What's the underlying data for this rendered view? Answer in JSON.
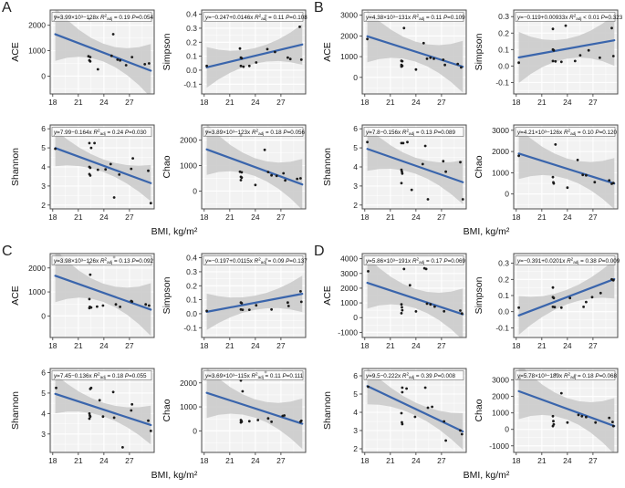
{
  "figure": {
    "xlabel": "BMI, kg/m²",
    "x_ticks": [
      18,
      21,
      24,
      27
    ],
    "x_range": [
      17.7,
      29.9
    ],
    "data_x_range": [
      18.3,
      29.5
    ],
    "r2": {
      "sym": "R",
      "sup": "2",
      "sub": "adj"
    },
    "colors": {
      "line": "#3a65ac",
      "band": "#cbcbcb",
      "panel_bg": "#f2f2f2",
      "grid": "#ffffff",
      "point": "#1a1a1a",
      "border": "#4d4d4d"
    }
  },
  "chart_data": [
    {
      "type": "scatter",
      "panel": "A",
      "ylabel": "ACE",
      "eq": "y=3.99×10³−128x",
      "r2": "= 0.19",
      "p": "P=0.054",
      "intercept": 3990,
      "slope": -128,
      "y_ticks": [
        0,
        1000,
        2000
      ],
      "y_fmt": 0,
      "y_range": [
        -700,
        2600
      ],
      "band_mid": 350,
      "band_end": 1050,
      "points": [
        [
          18.3,
          2350
        ],
        [
          22.3,
          2250
        ],
        [
          25.1,
          1650
        ],
        [
          22.2,
          780
        ],
        [
          22.4,
          750
        ],
        [
          22.3,
          620
        ],
        [
          22.4,
          580
        ],
        [
          23.3,
          270
        ],
        [
          24.9,
          800
        ],
        [
          25.6,
          650
        ],
        [
          25.9,
          620
        ],
        [
          26.6,
          430
        ],
        [
          27.3,
          750
        ],
        [
          28.8,
          470
        ],
        [
          29.3,
          500
        ]
      ]
    },
    {
      "type": "scatter",
      "panel": "A",
      "ylabel": "Simpson",
      "eq": "y=−0.247+0.0146x",
      "r2": "= 0.11",
      "p": "P=0.108",
      "intercept": -0.247,
      "slope": 0.0146,
      "y_ticks": [
        -0.1,
        0,
        0.1,
        0.2,
        0.3,
        0.4
      ],
      "y_fmt": 1,
      "y_range": [
        -0.17,
        0.43
      ],
      "band_mid": 0.055,
      "band_end": 0.145,
      "points": [
        [
          18.3,
          0.03
        ],
        [
          22.2,
          0.155
        ],
        [
          22.3,
          0.09
        ],
        [
          22.4,
          0.085
        ],
        [
          22.3,
          0.03
        ],
        [
          22.6,
          0.025
        ],
        [
          23.3,
          0.03
        ],
        [
          24.1,
          0.055
        ],
        [
          25.2,
          0.39
        ],
        [
          25.4,
          0.15
        ],
        [
          26.3,
          0.13
        ],
        [
          27.8,
          0.09
        ],
        [
          28.1,
          0.08
        ],
        [
          29.2,
          0.31
        ],
        [
          29.4,
          0.075
        ]
      ]
    },
    {
      "type": "scatter",
      "panel": "A",
      "ylabel": "Shannon",
      "eq": "y=7.99−0.164x",
      "r2": "= 0.24",
      "p": "P=0.030",
      "intercept": 7.99,
      "slope": -0.164,
      "y_ticks": [
        2,
        3,
        4,
        5,
        6
      ],
      "y_fmt": 0,
      "y_range": [
        1.8,
        6.2
      ],
      "band_mid": 0.33,
      "band_end": 0.95,
      "points": [
        [
          18.3,
          4.95
        ],
        [
          22.3,
          5.25
        ],
        [
          22.5,
          5.0
        ],
        [
          22.9,
          5.25
        ],
        [
          22.3,
          4.0
        ],
        [
          22.4,
          3.95
        ],
        [
          22.3,
          3.62
        ],
        [
          22.4,
          3.55
        ],
        [
          23.3,
          3.85
        ],
        [
          24.2,
          3.87
        ],
        [
          24.8,
          4.15
        ],
        [
          25.2,
          2.4
        ],
        [
          25.8,
          3.6
        ],
        [
          27.2,
          3.9
        ],
        [
          27.4,
          4.45
        ],
        [
          29.2,
          3.8
        ],
        [
          29.5,
          2.1
        ]
      ]
    },
    {
      "type": "scatter",
      "panel": "A",
      "ylabel": "Chao",
      "eq": "y=3.89×10³−123x",
      "r2": "= 0.18",
      "p": "P=0.056",
      "intercept": 3890,
      "slope": -123,
      "y_ticks": [
        0,
        1000,
        2000
      ],
      "y_fmt": 0,
      "y_range": [
        -700,
        2600
      ],
      "band_mid": 350,
      "band_end": 1000,
      "points": [
        [
          18.3,
          2350
        ],
        [
          22.3,
          2200
        ],
        [
          25.1,
          1620
        ],
        [
          22.2,
          760
        ],
        [
          22.4,
          740
        ],
        [
          22.3,
          560
        ],
        [
          22.4,
          530
        ],
        [
          22.3,
          430
        ],
        [
          24.0,
          240
        ],
        [
          25.5,
          750
        ],
        [
          25.9,
          620
        ],
        [
          26.5,
          600
        ],
        [
          27.3,
          700
        ],
        [
          27.5,
          420
        ],
        [
          28.9,
          480
        ],
        [
          29.3,
          500
        ]
      ]
    },
    {
      "type": "scatter",
      "panel": "B",
      "ylabel": "ACE",
      "eq": "y=4.38×10³−131x",
      "r2": "= 0.11",
      "p": "P=0.109",
      "intercept": 4380,
      "slope": -131,
      "y_ticks": [
        0,
        1000,
        2000,
        3000
      ],
      "y_fmt": 0,
      "y_range": [
        -800,
        3250
      ],
      "band_mid": 480,
      "band_end": 1250,
      "points": [
        [
          18.3,
          1850
        ],
        [
          22.6,
          2380
        ],
        [
          24.9,
          1650
        ],
        [
          22.3,
          800
        ],
        [
          22.4,
          780
        ],
        [
          22.3,
          600
        ],
        [
          22.4,
          550
        ],
        [
          22.3,
          520
        ],
        [
          24.0,
          380
        ],
        [
          25.3,
          900
        ],
        [
          25.7,
          950
        ],
        [
          26.1,
          900
        ],
        [
          27.2,
          850
        ],
        [
          27.4,
          600
        ],
        [
          28.9,
          650
        ],
        [
          29.3,
          480
        ]
      ]
    },
    {
      "type": "scatter",
      "panel": "B",
      "ylabel": "Simpson",
      "eq": "y=−0.119+0.00933x",
      "r2": "< 0.01",
      "p": "P=0.323",
      "intercept": -0.119,
      "slope": 0.00933,
      "y_ticks": [
        -0.1,
        0,
        0.1,
        0.2,
        0.3
      ],
      "y_fmt": 1,
      "y_range": [
        -0.17,
        0.34
      ],
      "band_mid": 0.06,
      "band_end": 0.155,
      "points": [
        [
          18.3,
          0.02
        ],
        [
          22.3,
          0.225
        ],
        [
          23.8,
          0.245
        ],
        [
          22.3,
          0.1
        ],
        [
          22.4,
          0.095
        ],
        [
          22.3,
          0.03
        ],
        [
          22.6,
          0.028
        ],
        [
          23.3,
          0.025
        ],
        [
          24.9,
          0.03
        ],
        [
          25.5,
          0.065
        ],
        [
          26.5,
          0.095
        ],
        [
          27.8,
          0.05
        ],
        [
          29.2,
          0.23
        ],
        [
          29.4,
          0.06
        ]
      ]
    },
    {
      "type": "scatter",
      "panel": "B",
      "ylabel": "Shannon",
      "eq": "y=7.8−0.156x",
      "r2": "= 0.13",
      "p": "P=0.089",
      "intercept": 7.8,
      "slope": -0.156,
      "y_ticks": [
        2,
        3,
        4,
        5,
        6
      ],
      "y_fmt": 0,
      "y_range": [
        1.8,
        6.2
      ],
      "band_mid": 0.42,
      "band_end": 1.15,
      "points": [
        [
          18.3,
          5.3
        ],
        [
          22.3,
          5.25
        ],
        [
          22.5,
          5.25
        ],
        [
          23.0,
          5.3
        ],
        [
          25.1,
          5.1
        ],
        [
          22.3,
          3.85
        ],
        [
          22.35,
          3.75
        ],
        [
          22.4,
          3.65
        ],
        [
          22.3,
          3.15
        ],
        [
          23.5,
          2.8
        ],
        [
          24.8,
          4.15
        ],
        [
          25.4,
          2.3
        ],
        [
          27.2,
          4.3
        ],
        [
          27.5,
          3.75
        ],
        [
          29.2,
          4.25
        ],
        [
          29.5,
          2.3
        ]
      ]
    },
    {
      "type": "scatter",
      "panel": "B",
      "ylabel": "Chao",
      "eq": "y=4.21×10³−126x",
      "r2": "= 0.10",
      "p": "P=0.120",
      "intercept": 4210,
      "slope": -126,
      "y_ticks": [
        0,
        1000,
        2000,
        3000
      ],
      "y_fmt": 0,
      "y_range": [
        -700,
        3250
      ],
      "band_mid": 480,
      "band_end": 1200,
      "points": [
        [
          18.3,
          1800
        ],
        [
          22.6,
          2330
        ],
        [
          25.2,
          1600
        ],
        [
          22.3,
          800
        ],
        [
          22.35,
          550
        ],
        [
          22.4,
          500
        ],
        [
          24.0,
          300
        ],
        [
          25.8,
          900
        ],
        [
          26.2,
          880
        ],
        [
          27.2,
          560
        ],
        [
          28.9,
          640
        ],
        [
          29.2,
          480
        ],
        [
          29.4,
          520
        ]
      ]
    },
    {
      "type": "scatter",
      "panel": "C",
      "ylabel": "ACE",
      "eq": "y=3.98×10³−126x",
      "r2": "= 0.13",
      "p": "P=0.092",
      "intercept": 3980,
      "slope": -126,
      "y_ticks": [
        0,
        1000,
        2000
      ],
      "y_fmt": 0,
      "y_range": [
        -900,
        2600
      ],
      "band_mid": 380,
      "band_end": 1100,
      "points": [
        [
          22.3,
          2200
        ],
        [
          22.4,
          1720
        ],
        [
          25.2,
          2450
        ],
        [
          22.3,
          700
        ],
        [
          22.35,
          380
        ],
        [
          22.5,
          350
        ],
        [
          22.3,
          330
        ],
        [
          23.2,
          390
        ],
        [
          23.9,
          430
        ],
        [
          25.4,
          480
        ],
        [
          25.9,
          380
        ],
        [
          27.2,
          620
        ],
        [
          27.3,
          600
        ],
        [
          28.9,
          480
        ],
        [
          29.3,
          430
        ]
      ]
    },
    {
      "type": "scatter",
      "panel": "C",
      "ylabel": "Simpson",
      "eq": "y=−0.197+0.0115x",
      "r2": "= 0.09",
      "p": "P=0.137",
      "intercept": -0.197,
      "slope": 0.0115,
      "y_ticks": [
        -0.1,
        0,
        0.1,
        0.2,
        0.3,
        0.4
      ],
      "y_fmt": 1,
      "y_range": [
        -0.17,
        0.43
      ],
      "band_mid": 0.05,
      "band_end": 0.13,
      "points": [
        [
          18.3,
          0.02
        ],
        [
          22.3,
          0.08
        ],
        [
          22.4,
          0.075
        ],
        [
          22.3,
          0.03
        ],
        [
          22.5,
          0.028
        ],
        [
          23.3,
          0.028
        ],
        [
          24.1,
          0.06
        ],
        [
          25.3,
          0.39
        ],
        [
          25.9,
          0.03
        ],
        [
          27.8,
          0.08
        ],
        [
          27.9,
          0.055
        ],
        [
          29.3,
          0.16
        ],
        [
          29.4,
          0.085
        ]
      ]
    },
    {
      "type": "scatter",
      "panel": "C",
      "ylabel": "Shannon",
      "eq": "y=7.45−0.136x",
      "r2": "= 0.18",
      "p": "P=0.055",
      "intercept": 7.45,
      "slope": -0.136,
      "y_ticks": [
        3,
        4,
        5,
        6
      ],
      "y_fmt": 0,
      "y_range": [
        2.1,
        6.2
      ],
      "band_mid": 0.33,
      "band_end": 0.95,
      "points": [
        [
          18.4,
          5.25
        ],
        [
          22.4,
          5.2
        ],
        [
          22.5,
          5.25
        ],
        [
          23.5,
          4.65
        ],
        [
          25.1,
          5.05
        ],
        [
          22.3,
          4.0
        ],
        [
          22.35,
          3.9
        ],
        [
          22.4,
          3.85
        ],
        [
          22.3,
          3.75
        ],
        [
          23.9,
          3.85
        ],
        [
          25.2,
          3.8
        ],
        [
          26.2,
          2.35
        ],
        [
          27.2,
          4.15
        ],
        [
          27.3,
          4.45
        ],
        [
          29.2,
          3.65
        ],
        [
          29.5,
          3.15
        ]
      ]
    },
    {
      "type": "scatter",
      "panel": "C",
      "ylabel": "Chao",
      "eq": "y=3.69×10³−115x",
      "r2": "= 0.11",
      "p": "P=0.111",
      "intercept": 3690,
      "slope": -115,
      "y_ticks": [
        0,
        1000,
        2000
      ],
      "y_fmt": 0,
      "y_range": [
        -900,
        2600
      ],
      "band_mid": 380,
      "band_end": 1050,
      "points": [
        [
          22.3,
          2100
        ],
        [
          22.5,
          1650
        ],
        [
          25.2,
          2450
        ],
        [
          22.3,
          450
        ],
        [
          22.35,
          420
        ],
        [
          22.4,
          380
        ],
        [
          22.3,
          350
        ],
        [
          23.3,
          400
        ],
        [
          24.3,
          450
        ],
        [
          25.5,
          520
        ],
        [
          25.9,
          380
        ],
        [
          27.2,
          620
        ],
        [
          27.4,
          640
        ],
        [
          29.3,
          380
        ],
        [
          29.4,
          420
        ]
      ]
    },
    {
      "type": "scatter",
      "panel": "D",
      "ylabel": "ACE",
      "eq": "y=5.86×10³−191x",
      "r2": "= 0.17",
      "p": "P=0.069",
      "intercept": 5860,
      "slope": -191,
      "y_ticks": [
        -1000,
        0,
        1000,
        2000,
        3000,
        4000
      ],
      "y_fmt": 0,
      "y_range": [
        -1350,
        4350
      ],
      "band_mid": 650,
      "band_end": 1750,
      "points": [
        [
          18.4,
          3150
        ],
        [
          22.6,
          3300
        ],
        [
          25.0,
          3350
        ],
        [
          25.2,
          3300
        ],
        [
          23.3,
          2200
        ],
        [
          22.3,
          900
        ],
        [
          22.35,
          700
        ],
        [
          22.4,
          500
        ],
        [
          22.3,
          300
        ],
        [
          24.0,
          420
        ],
        [
          25.3,
          950
        ],
        [
          25.7,
          900
        ],
        [
          26.2,
          750
        ],
        [
          27.3,
          430
        ],
        [
          29.2,
          480
        ],
        [
          29.4,
          280
        ]
      ]
    },
    {
      "type": "scatter",
      "panel": "D",
      "ylabel": "Simpson",
      "eq": "y=−0.391+0.0201x",
      "r2": "= 0.38",
      "p": "P=0.009",
      "intercept": -0.391,
      "slope": 0.0201,
      "y_ticks": [
        -0.1,
        0,
        0.1,
        0.2,
        0.3
      ],
      "y_fmt": 1,
      "y_range": [
        -0.16,
        0.36
      ],
      "band_mid": 0.045,
      "band_end": 0.12,
      "points": [
        [
          18.3,
          0.025
        ],
        [
          22.3,
          0.15
        ],
        [
          22.3,
          0.09
        ],
        [
          22.4,
          0.085
        ],
        [
          22.3,
          0.03
        ],
        [
          22.5,
          0.028
        ],
        [
          23.3,
          0.025
        ],
        [
          24.3,
          0.085
        ],
        [
          25.9,
          0.03
        ],
        [
          26.2,
          0.06
        ],
        [
          26.9,
          0.09
        ],
        [
          27.9,
          0.115
        ],
        [
          29.2,
          0.2
        ],
        [
          29.4,
          0.195
        ]
      ]
    },
    {
      "type": "scatter",
      "panel": "D",
      "ylabel": "Shannon",
      "eq": "y=9.5−0.222x",
      "r2": "= 0.39",
      "p": "P=0.008",
      "intercept": 9.5,
      "slope": -0.222,
      "y_ticks": [
        2,
        3,
        4,
        5,
        6
      ],
      "y_fmt": 0,
      "y_range": [
        1.8,
        6.4
      ],
      "band_mid": 0.35,
      "band_end": 1.0,
      "points": [
        [
          18.4,
          5.4
        ],
        [
          22.4,
          5.35
        ],
        [
          22.9,
          5.3
        ],
        [
          25.1,
          5.35
        ],
        [
          22.4,
          5.1
        ],
        [
          22.3,
          3.95
        ],
        [
          22.35,
          3.45
        ],
        [
          22.4,
          3.35
        ],
        [
          23.9,
          3.75
        ],
        [
          25.4,
          4.25
        ],
        [
          25.9,
          4.3
        ],
        [
          27.3,
          3.5
        ],
        [
          27.5,
          2.45
        ],
        [
          29.2,
          3.0
        ],
        [
          29.4,
          2.8
        ]
      ]
    },
    {
      "type": "scatter",
      "panel": "D",
      "ylabel": "Chao",
      "eq": "y=5.78×10³−189x",
      "r2": "= 0.18",
      "p": "P=0.068",
      "intercept": 5780,
      "slope": -189,
      "y_ticks": [
        -1000,
        0,
        1000,
        2000,
        3000
      ],
      "y_fmt": 0,
      "y_range": [
        -1400,
        3700
      ],
      "band_mid": 650,
      "band_end": 1700,
      "points": [
        [
          18.4,
          3100
        ],
        [
          22.6,
          3350
        ],
        [
          24.9,
          3300
        ],
        [
          23.3,
          2200
        ],
        [
          22.3,
          800
        ],
        [
          22.35,
          500
        ],
        [
          22.4,
          300
        ],
        [
          22.3,
          200
        ],
        [
          24.0,
          420
        ],
        [
          25.3,
          880
        ],
        [
          25.7,
          800
        ],
        [
          26.2,
          750
        ],
        [
          27.3,
          420
        ],
        [
          28.9,
          700
        ],
        [
          29.3,
          450
        ],
        [
          29.4,
          200
        ]
      ]
    }
  ]
}
